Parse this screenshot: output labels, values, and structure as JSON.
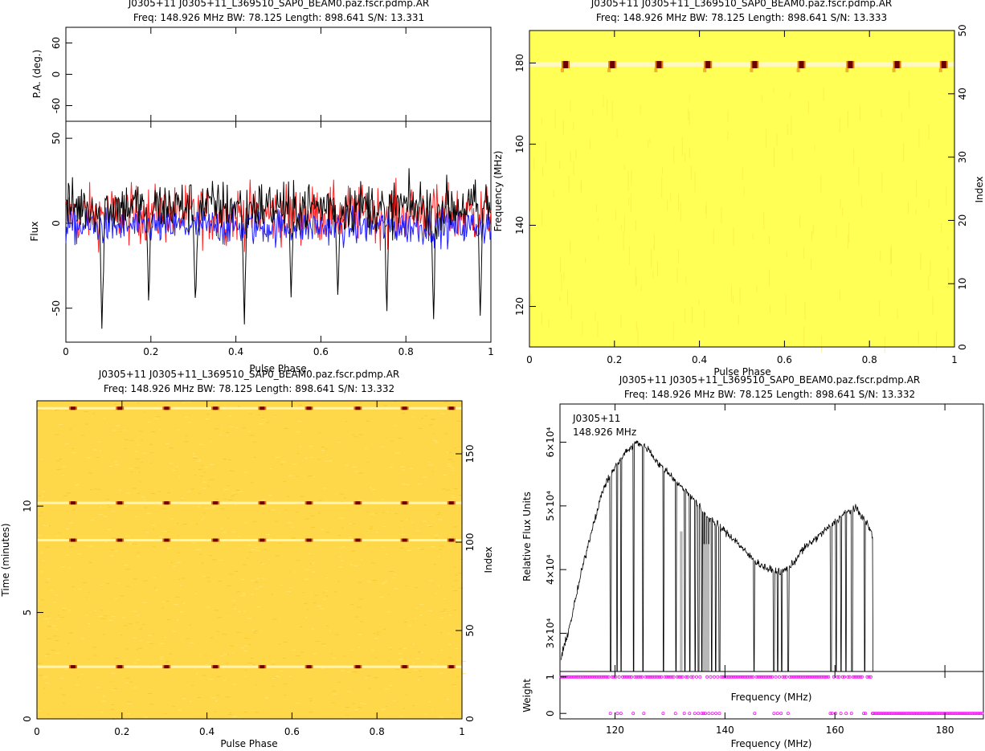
{
  "panels": {
    "top_left": {
      "title_line1": "J0305+11  J0305+11_L369510_SAP0_BEAM0.paz.fscr.pdmp.AR",
      "title_line2": "Freq: 148.926 MHz  BW: 78.125  Length: 898.641  S/N: 13.331",
      "pa_ylabel": "P.A. (deg.)",
      "flux_ylabel": "Flux",
      "xlabel": "Pulse Phase"
    },
    "top_right": {
      "title_line1": "J0305+11  J0305+11_L369510_SAP0_BEAM0.paz.fscr.pdmp.AR",
      "title_line2": "Freq: 148.926 MHz  BW: 78.125  Length: 898.641  S/N: 13.333",
      "ylabel": "Frequency (MHz)",
      "ylabel_right": "Index",
      "xlabel": "Pulse Phase"
    },
    "bottom_left": {
      "title_line1": "J0305+11  J0305+11_L369510_SAP0_BEAM0.paz.fscr.pdmp.AR",
      "title_line2": "Freq: 148.926 MHz  BW: 78.125  Length: 898.641  S/N: 13.332",
      "ylabel": "Time (minutes)",
      "ylabel_right": "Index",
      "xlabel": "Pulse Phase"
    },
    "bottom_right": {
      "title_line1": "J0305+11  J0305+11_L369510_SAP0_BEAM0.paz.fscr.pdmp.AR",
      "title_line2": "Freq: 148.926 MHz  BW: 78.125  Length: 898.641  S/N: 13.332",
      "ylabel": "Relative Flux Units",
      "weight_ylabel": "Weight",
      "mid_xlabel": "Frequency (MHz)",
      "xlabel": "Frequency (MHz)",
      "annot_line1": "J0305+11",
      "annot_line2": "148.926 MHz"
    }
  },
  "chart_data": [
    {
      "type": "line",
      "panel": "top_left_pa",
      "xlim": [
        0,
        1
      ],
      "ylim": [
        -90,
        90
      ],
      "yticks": [
        -60,
        0,
        60
      ],
      "x": [],
      "values": []
    },
    {
      "type": "line",
      "panel": "top_left_flux",
      "xlim": [
        0,
        1
      ],
      "ylim": [
        -70,
        60
      ],
      "xticks": [
        0,
        0.2,
        0.4,
        0.6,
        0.8,
        1
      ],
      "xtick_labels": [
        "0",
        "0.2",
        "0.4",
        "0.6",
        "0.8",
        "1"
      ],
      "yticks": [
        -50,
        0,
        50
      ],
      "colors": [
        "#000000",
        "#ff2020",
        "#2020ff"
      ],
      "dip_phases": [
        0.085,
        0.195,
        0.305,
        0.42,
        0.53,
        0.64,
        0.755,
        0.865,
        0.975
      ],
      "dip_depths": [
        -65,
        -50,
        -50,
        -60,
        -45,
        -45,
        -55,
        -58,
        -55
      ],
      "series": [
        {
          "name": "",
          "mean": 10,
          "noise": 20
        },
        {
          "name": "",
          "mean": 5,
          "noise": 22
        },
        {
          "name": "",
          "mean": -2,
          "noise": 14
        }
      ]
    },
    {
      "type": "heatmap",
      "panel": "top_right",
      "xlim": [
        0,
        1
      ],
      "ylim": [
        110,
        188
      ],
      "y2lim": [
        0,
        50
      ],
      "xticks": [
        0,
        0.2,
        0.4,
        0.6,
        0.8,
        1
      ],
      "yticks": [
        120,
        140,
        160,
        180
      ],
      "y2ticks": [
        0,
        10,
        20,
        30,
        40,
        50
      ],
      "background": "#ffff55",
      "hot_freq": 179.5,
      "hot_phases": [
        0.085,
        0.195,
        0.305,
        0.42,
        0.53,
        0.64,
        0.755,
        0.865,
        0.975
      ]
    },
    {
      "type": "heatmap",
      "panel": "bottom_left",
      "xlim": [
        0,
        1
      ],
      "ylim": [
        0,
        14.95
      ],
      "y2lim": [
        0,
        180
      ],
      "xticks": [
        0,
        0.2,
        0.4,
        0.6,
        0.8,
        1
      ],
      "yticks": [
        0,
        5,
        10
      ],
      "y2ticks": [
        0,
        50,
        100,
        150
      ],
      "background": "#ffd84a",
      "hot_times": [
        2.45,
        8.4,
        10.15,
        14.6
      ],
      "hot_phases": [
        0.085,
        0.195,
        0.305,
        0.42,
        0.53,
        0.64,
        0.755,
        0.865,
        0.975
      ]
    },
    {
      "type": "line",
      "panel": "bottom_right_spectrum",
      "xlim": [
        110,
        187
      ],
      "ylim": [
        24000,
        66000
      ],
      "xticks": [
        120,
        140,
        160,
        180
      ],
      "yticks": [
        30000,
        40000,
        50000,
        60000
      ],
      "ytick_labels": [
        "3×10⁴",
        "4×10⁴",
        "5×10⁴",
        "6×10⁴"
      ],
      "x": [
        110.2,
        112,
        114,
        116,
        118,
        120,
        122,
        124,
        126,
        128,
        130,
        132,
        134,
        136,
        138,
        140,
        142,
        144,
        146,
        148,
        150,
        152,
        154,
        156,
        158,
        160,
        162,
        164,
        166,
        167
      ],
      "values": [
        26000,
        32000,
        40000,
        47000,
        53000,
        56000,
        58500,
        60000,
        59000,
        56500,
        55000,
        53000,
        51500,
        49000,
        47500,
        46000,
        44500,
        42500,
        41000,
        40000,
        39500,
        40500,
        43000,
        44500,
        46000,
        47500,
        49000,
        49500,
        47000,
        45000
      ],
      "zero_channels": [
        119.2,
        120.4,
        121.1,
        123.4,
        125.1,
        128.8,
        131.1,
        132.7,
        133.6,
        134.6,
        135.2,
        135.8,
        136.1,
        136.5,
        137.0,
        137.6,
        138.3,
        139.0,
        145.3,
        148.9,
        149.6,
        150.3,
        151.5,
        159.3,
        160.2,
        161.1,
        162.0,
        163.1,
        165.4,
        167.0
      ]
    },
    {
      "type": "scatter",
      "panel": "bottom_right_weight",
      "xlim": [
        110,
        187
      ],
      "ylim": [
        -0.15,
        1.15
      ],
      "yticks": [
        0,
        1
      ],
      "color": "#ff00ff",
      "weight_one_range": [
        110,
        167
      ],
      "weight_zero_range": [
        167,
        187
      ]
    }
  ]
}
